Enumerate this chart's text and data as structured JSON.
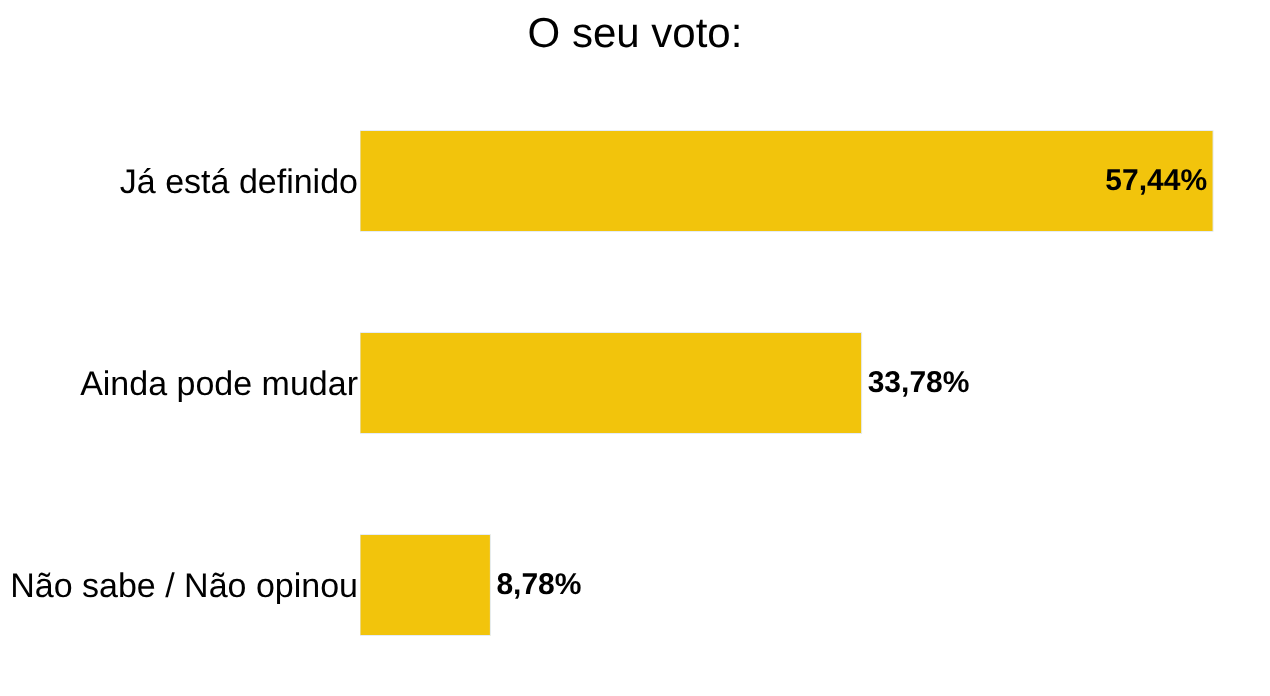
{
  "chart_data": {
    "type": "bar",
    "orientation": "horizontal",
    "title": "O seu voto:",
    "categories": [
      "Já está definido",
      "Ainda pode mudar",
      "Não sabe / Não opinou"
    ],
    "values": [
      57.44,
      33.78,
      8.78
    ],
    "value_labels": [
      "57,44%",
      "33,78%",
      "8,78%"
    ],
    "color": "#f2c40c",
    "legend": false
  }
}
